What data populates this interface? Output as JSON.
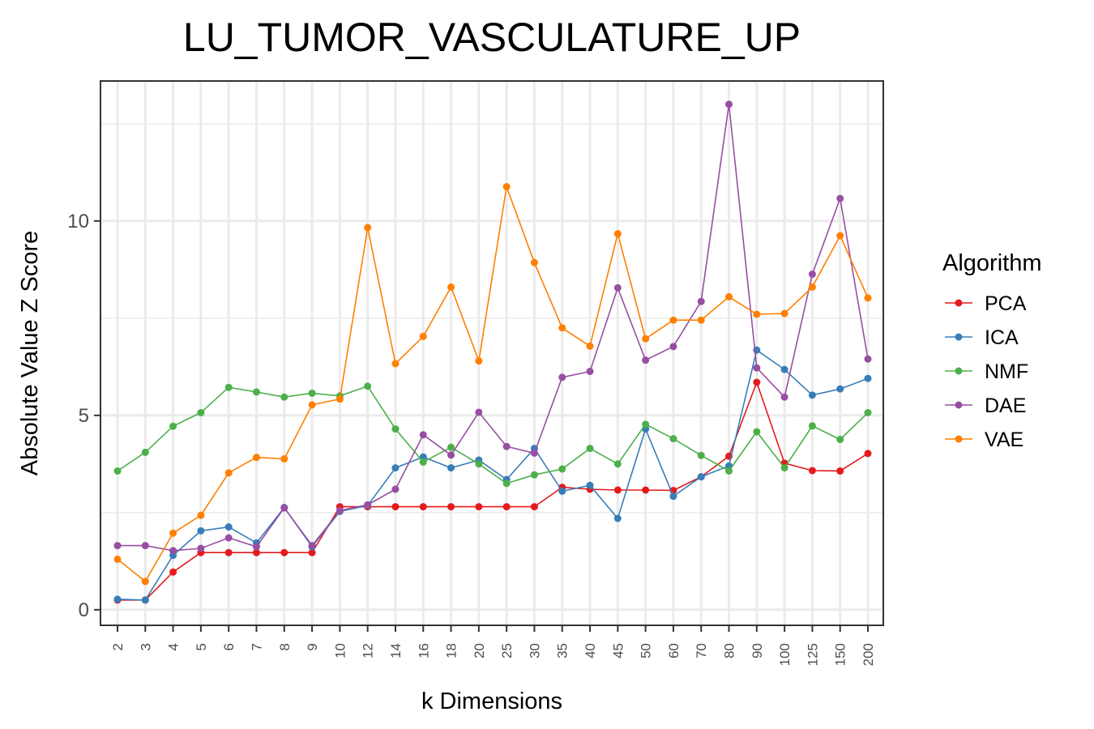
{
  "chart_data": {
    "type": "line",
    "title": "LU_TUMOR_VASCULATURE_UP",
    "xlabel": "k Dimensions",
    "ylabel": "Absolute Value Z Score",
    "categories": [
      "2",
      "3",
      "4",
      "5",
      "6",
      "7",
      "8",
      "9",
      "10",
      "12",
      "14",
      "16",
      "18",
      "20",
      "25",
      "30",
      "35",
      "40",
      "45",
      "50",
      "60",
      "70",
      "80",
      "90",
      "100",
      "125",
      "150",
      "200"
    ],
    "ylim": [
      -0.4,
      13.6
    ],
    "yticks": [
      0,
      5,
      10
    ],
    "ytick_labels": [
      "0",
      "5",
      "10"
    ],
    "grid": true,
    "legend": {
      "title": "Algorithm",
      "position": "right"
    },
    "series": [
      {
        "name": "PCA",
        "color": "#e41a1c",
        "values": [
          0.25,
          0.25,
          0.97,
          1.47,
          1.47,
          1.47,
          1.47,
          1.47,
          2.65,
          2.65,
          2.65,
          2.65,
          2.65,
          2.65,
          2.65,
          2.65,
          3.15,
          3.1,
          3.08,
          3.08,
          3.07,
          3.42,
          3.95,
          5.85,
          3.77,
          3.58,
          3.57,
          4.02
        ]
      },
      {
        "name": "ICA",
        "color": "#377eb8",
        "values": [
          0.27,
          0.25,
          1.4,
          2.03,
          2.13,
          1.72,
          2.63,
          1.62,
          2.53,
          2.68,
          3.65,
          3.93,
          3.65,
          3.85,
          3.35,
          4.15,
          3.05,
          3.2,
          2.35,
          4.65,
          2.92,
          3.42,
          3.7,
          6.68,
          6.18,
          5.52,
          5.68,
          5.95
        ]
      },
      {
        "name": "NMF",
        "color": "#4daf4a",
        "values": [
          3.57,
          4.05,
          4.72,
          5.07,
          5.72,
          5.6,
          5.47,
          5.57,
          5.5,
          5.75,
          4.65,
          3.8,
          4.18,
          3.75,
          3.25,
          3.47,
          3.62,
          4.15,
          3.75,
          4.77,
          4.4,
          3.97,
          3.57,
          4.58,
          3.65,
          4.73,
          4.38,
          5.07
        ]
      },
      {
        "name": "DAE",
        "color": "#984ea3",
        "values": [
          1.65,
          1.65,
          1.52,
          1.58,
          1.85,
          1.62,
          2.62,
          1.65,
          2.55,
          2.7,
          3.1,
          4.5,
          3.98,
          5.08,
          4.2,
          4.03,
          5.98,
          6.13,
          8.28,
          6.42,
          6.77,
          7.93,
          13.0,
          6.22,
          5.47,
          8.63,
          10.58,
          6.45
        ]
      },
      {
        "name": "VAE",
        "color": "#ff7f00",
        "values": [
          1.3,
          0.73,
          1.97,
          2.43,
          3.52,
          3.92,
          3.88,
          5.27,
          5.42,
          9.83,
          6.33,
          7.03,
          8.3,
          6.4,
          10.88,
          8.93,
          7.25,
          6.78,
          9.67,
          6.97,
          7.45,
          7.45,
          8.05,
          7.6,
          7.62,
          8.3,
          9.62,
          8.02
        ]
      }
    ]
  }
}
